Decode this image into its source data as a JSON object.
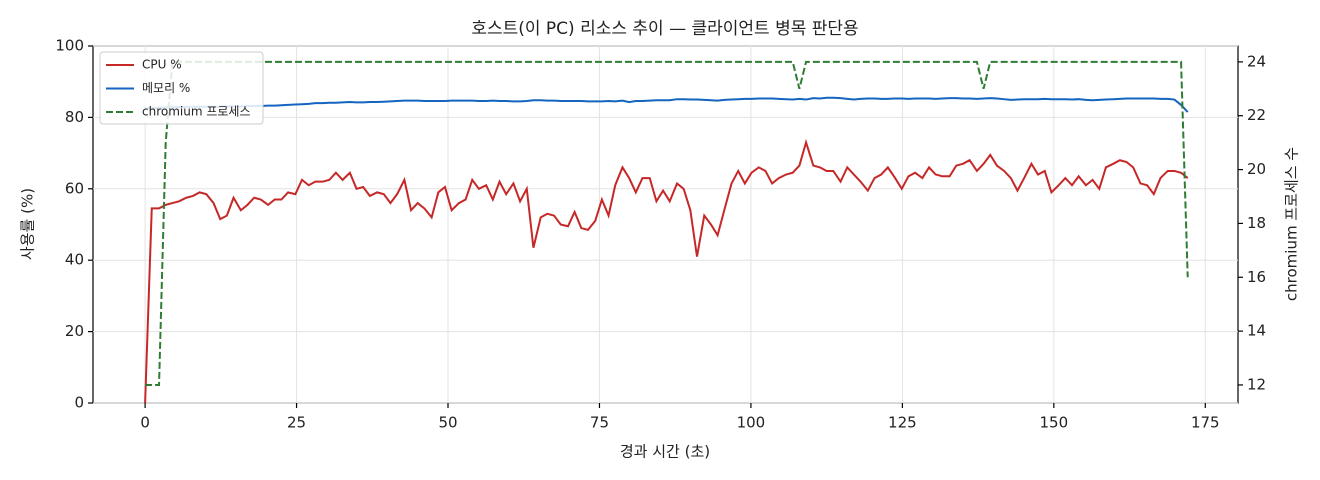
{
  "chart_data": {
    "type": "line",
    "title": "호스트(이 PC) 리소스 추이 — 클라이언트 병목 판단용",
    "xlabel": "경과 시간 (초)",
    "ylabel": "사용률 (%)",
    "y2label": "chromium 프로세스 수",
    "xlim": [
      -8.6,
      180.4
    ],
    "xticks": [
      0,
      25,
      50,
      75,
      100,
      125,
      150,
      175
    ],
    "ylim": [
      0,
      100
    ],
    "yticks": [
      0,
      20,
      40,
      60,
      80,
      100
    ],
    "y2lim": [
      11.33,
      24.59
    ],
    "y2ticks": [
      12,
      14,
      16,
      18,
      20,
      22,
      24
    ],
    "grid": true,
    "legend": "upper left",
    "x": [
      0,
      1.1,
      2.3,
      3.4,
      4.5,
      5.6,
      6.8,
      7.9,
      9,
      10.1,
      11.3,
      12.4,
      13.5,
      14.6,
      15.8,
      16.9,
      18,
      19.1,
      20.3,
      21.4,
      22.5,
      23.6,
      24.8,
      25.9,
      27,
      28.1,
      29.3,
      30.4,
      31.5,
      32.6,
      33.8,
      34.9,
      36,
      37.1,
      38.3,
      39.4,
      40.5,
      41.6,
      42.8,
      43.9,
      45,
      46.1,
      47.3,
      48.4,
      49.5,
      50.6,
      51.8,
      52.9,
      54,
      55.1,
      56.3,
      57.4,
      58.5,
      59.6,
      60.8,
      61.9,
      63,
      64.1,
      65.3,
      66.4,
      67.5,
      68.6,
      69.8,
      70.9,
      72,
      73.1,
      74.3,
      75.4,
      76.5,
      77.6,
      78.8,
      79.9,
      81,
      82.1,
      83.3,
      84.4,
      85.5,
      86.6,
      87.8,
      88.9,
      90,
      91.1,
      92.3,
      93.4,
      94.5,
      95.6,
      96.8,
      97.9,
      99,
      100.1,
      101.3,
      102.4,
      103.5,
      104.6,
      105.8,
      106.9,
      108,
      109.1,
      110.3,
      111.4,
      112.5,
      113.6,
      114.8,
      115.9,
      117,
      118.1,
      119.3,
      120.4,
      121.5,
      122.6,
      123.8,
      124.9,
      126,
      127.1,
      128.3,
      129.4,
      130.5,
      131.6,
      132.8,
      133.9,
      135,
      136.1,
      137.3,
      138.4,
      139.5,
      140.6,
      141.8,
      142.9,
      144,
      145.1,
      146.3,
      147.4,
      148.5,
      149.6,
      150.8,
      151.9,
      153,
      154.1,
      155.3,
      156.4,
      157.5,
      158.6,
      159.8,
      160.9,
      162,
      163.1,
      164.3,
      165.4,
      166.5,
      167.6,
      168.8,
      169.9,
      171,
      172.1
    ],
    "series": [
      {
        "name": "CPU %",
        "color": "#c62828",
        "linestyle": "solid",
        "axis": "y",
        "values": [
          0,
          54.5,
          54.5,
          55.5,
          56,
          56.5,
          57.5,
          58,
          59,
          58.5,
          56,
          51.5,
          52.5,
          57.5,
          54,
          55.5,
          57.5,
          57,
          55.5,
          57,
          57,
          59,
          58.5,
          62.5,
          61,
          62,
          62,
          62.5,
          64.5,
          62.5,
          64.5,
          60,
          60.5,
          58,
          59,
          58.5,
          56,
          58.5,
          62.5,
          54,
          56,
          54.5,
          52,
          59,
          60.5,
          54,
          56,
          57,
          62.5,
          60,
          61,
          57,
          62,
          58.5,
          61.5,
          56.5,
          60,
          43.5,
          52,
          53,
          52.5,
          50,
          49.5,
          53.5,
          49,
          48.5,
          51,
          57,
          52.5,
          61,
          66,
          63,
          59,
          63,
          63,
          56.5,
          59.5,
          56.5,
          61.5,
          60,
          54,
          41,
          52.5,
          50,
          47,
          54,
          61.5,
          65,
          61.5,
          64.5,
          66,
          65,
          61.5,
          63,
          64,
          64.5,
          66.5,
          73,
          66.5,
          66,
          65,
          65,
          62,
          66,
          64,
          62,
          59.5,
          63,
          64,
          66,
          63,
          60,
          63.5,
          64.5,
          63,
          66,
          64,
          63.5,
          63.5,
          66.5,
          67,
          68,
          65,
          67,
          69.5,
          66.5,
          65,
          63,
          59.5,
          63,
          67,
          64,
          65,
          59,
          61,
          63,
          61,
          63.5,
          61,
          62.5,
          60,
          66,
          67,
          68,
          67.5,
          66,
          61.5,
          61,
          58.5,
          63,
          65,
          65,
          64.5,
          63
        ]
      },
      {
        "name": "메모리 %",
        "color": "#1565c0",
        "linestyle": "solid",
        "axis": "y",
        "values": [
          82.5,
          82.6,
          82.7,
          82.8,
          82.8,
          82.9,
          82.9,
          83,
          83,
          83,
          83,
          83,
          83.1,
          83.1,
          83.1,
          83.2,
          83.2,
          83.2,
          83.3,
          83.3,
          83.4,
          83.5,
          83.6,
          83.7,
          83.8,
          84,
          84,
          84.1,
          84.1,
          84.2,
          84.3,
          84.2,
          84.2,
          84.3,
          84.3,
          84.4,
          84.5,
          84.6,
          84.7,
          84.7,
          84.7,
          84.6,
          84.6,
          84.6,
          84.6,
          84.7,
          84.7,
          84.7,
          84.7,
          84.6,
          84.6,
          84.7,
          84.6,
          84.6,
          84.5,
          84.5,
          84.6,
          84.8,
          84.8,
          84.7,
          84.7,
          84.6,
          84.6,
          84.6,
          84.6,
          84.5,
          84.5,
          84.5,
          84.6,
          84.5,
          84.7,
          84.3,
          84.6,
          84.6,
          84.7,
          84.8,
          84.8,
          84.8,
          85.1,
          85.1,
          85,
          85,
          84.9,
          84.8,
          84.7,
          84.9,
          85,
          85.1,
          85.2,
          85.2,
          85.3,
          85.3,
          85.3,
          85.2,
          85.1,
          85,
          85.2,
          85,
          85.4,
          85.3,
          85.5,
          85.5,
          85.4,
          85.2,
          85,
          85.2,
          85.3,
          85.3,
          85.2,
          85.2,
          85.3,
          85.3,
          85.2,
          85.3,
          85.3,
          85.3,
          85.2,
          85.3,
          85.4,
          85.4,
          85.3,
          85.3,
          85.2,
          85.3,
          85.4,
          85.3,
          85.1,
          84.9,
          85,
          85.1,
          85.1,
          85.1,
          85.2,
          85.1,
          85.1,
          85.1,
          85,
          85.1,
          84.9,
          84.8,
          84.9,
          85,
          85.1,
          85.2,
          85.3,
          85.3,
          85.3,
          85.3,
          85.3,
          85.2,
          85.2,
          85,
          83.5,
          81.5
        ]
      },
      {
        "name": "chromium 프로세스",
        "color": "#2e7d32",
        "linestyle": "dashed",
        "axis": "y2",
        "values": [
          12,
          12,
          12,
          21,
          24,
          24,
          24,
          24,
          24,
          24,
          24,
          24,
          24,
          24,
          24,
          24,
          24,
          24,
          24,
          24,
          24,
          24,
          24,
          24,
          24,
          24,
          24,
          24,
          24,
          24,
          24,
          24,
          24,
          24,
          24,
          24,
          24,
          24,
          24,
          24,
          24,
          24,
          24,
          24,
          24,
          24,
          24,
          24,
          24,
          24,
          24,
          24,
          24,
          24,
          24,
          24,
          24,
          24,
          24,
          24,
          24,
          24,
          24,
          24,
          24,
          24,
          24,
          24,
          24,
          24,
          24,
          24,
          24,
          24,
          24,
          24,
          24,
          24,
          24,
          24,
          24,
          24,
          24,
          24,
          24,
          24,
          24,
          24,
          24,
          24,
          24,
          24,
          24,
          24,
          24,
          24,
          23,
          24,
          24,
          24,
          24,
          24,
          24,
          24,
          24,
          24,
          24,
          24,
          24,
          24,
          24,
          24,
          24,
          24,
          24,
          24,
          24,
          24,
          24,
          24,
          24,
          24,
          24,
          23,
          24,
          24,
          24,
          24,
          24,
          24,
          24,
          24,
          24,
          24,
          24,
          24,
          24,
          24,
          24,
          24,
          24,
          24,
          24,
          24,
          24,
          24,
          24,
          24,
          24,
          24,
          24,
          24,
          24,
          16
        ]
      }
    ]
  }
}
